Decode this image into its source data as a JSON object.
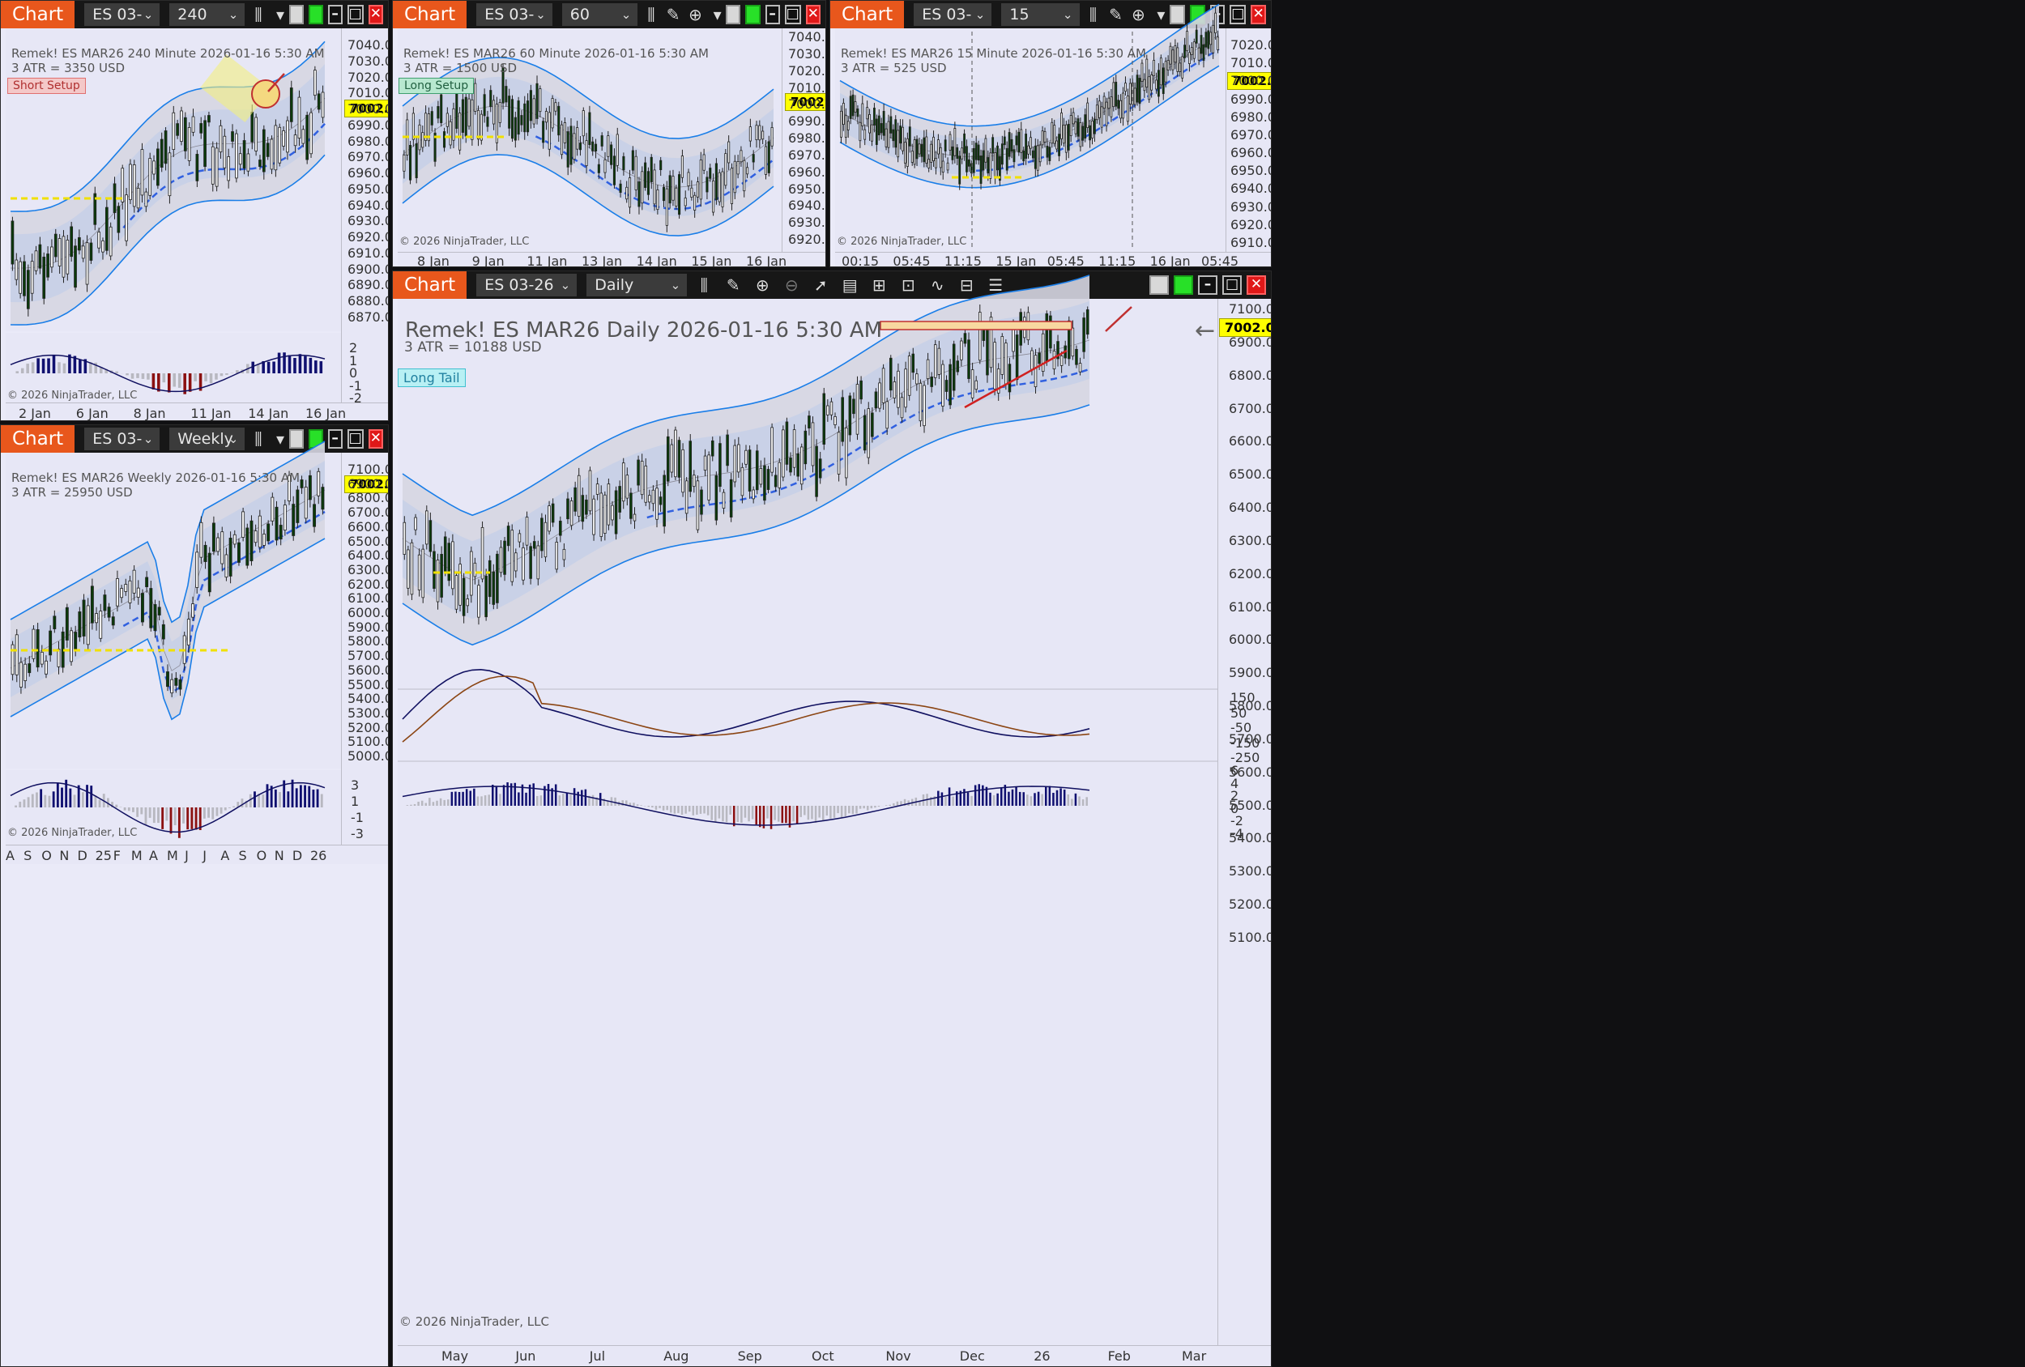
{
  "toolbar": {
    "chart_label": "Chart",
    "instrument": "ES 03-26"
  },
  "colors": {
    "tab_accent": "#e8571c",
    "price_marker": "#ffff00",
    "band_blue": "#1a7ee8",
    "bull_bar": "#0a3a0a",
    "bear_bar": "#8b1010"
  },
  "panes": {
    "p240": {
      "period": "240 Minute",
      "title": "Remek!  ES MAR26  240 Minute  2026-01-16 5:30 AM",
      "atr": "3 ATR = 3350 USD",
      "setup": "Short Setup",
      "price": "7002.00",
      "copyright": "© 2026 NinjaTrader, LLC",
      "y_ticks": [
        "7040.00",
        "7030.00",
        "7020.00",
        "7010.00",
        "7000.00",
        "6990.00",
        "6980.00",
        "6970.00",
        "6960.00",
        "6950.00",
        "6940.00",
        "6930.00",
        "6920.00",
        "6910.00",
        "6900.00",
        "6890.00",
        "6880.00",
        "6870.00"
      ],
      "osc_ticks": [
        "2",
        "1",
        "0",
        "-1",
        "-2"
      ],
      "x_ticks": [
        "2 Jan",
        "6 Jan",
        "8 Jan",
        "11 Jan",
        "14 Jan",
        "16 Jan"
      ]
    },
    "p60": {
      "period": "60 Minute",
      "title": "Remek!  ES MAR26  60 Minute  2026-01-16 5:30 AM",
      "atr": "3 ATR = 1500 USD",
      "setup": "Long Setup",
      "price": "7002.00",
      "copyright": "© 2026 NinjaTrader, LLC",
      "y_ticks": [
        "7040.00",
        "7030.00",
        "7020.00",
        "7010.00",
        "7000.00",
        "6990.00",
        "6980.00",
        "6970.00",
        "6960.00",
        "6950.00",
        "6940.00",
        "6930.00",
        "6920.00"
      ],
      "x_ticks": [
        "8 Jan",
        "9 Jan",
        "11 Jan",
        "13 Jan",
        "14 Jan",
        "15 Jan",
        "16 Jan"
      ]
    },
    "p15": {
      "period": "15 Minute",
      "title": "Remek!  ES MAR26  15 Minute  2026-01-16 5:30 AM",
      "atr": "3 ATR = 525 USD",
      "price": "7002.00",
      "copyright": "© 2026 NinjaTrader, LLC",
      "y_ticks": [
        "7020.00",
        "7010.00",
        "7000.00",
        "6990.00",
        "6980.00",
        "6970.00",
        "6960.00",
        "6950.00",
        "6940.00",
        "6930.00",
        "6920.00",
        "6910.00"
      ],
      "x_ticks": [
        "00:15",
        "05:45",
        "11:15",
        "15 Jan",
        "05:45",
        "11:15",
        "16 Jan",
        "05:45"
      ]
    },
    "pW": {
      "period": "Weekly",
      "title": "Remek!  ES MAR26  Weekly  2026-01-16 5:30 AM",
      "atr": "3 ATR = 25950 USD",
      "price": "7002.00",
      "copyright": "© 2026 NinjaTrader, LLC",
      "y_ticks": [
        "7100.00",
        "6900.00",
        "6800.00",
        "6700.00",
        "6600.00",
        "6500.00",
        "6400.00",
        "6300.00",
        "6200.00",
        "6100.00",
        "6000.00",
        "5900.00",
        "5800.00",
        "5700.00",
        "5600.00",
        "5500.00",
        "5400.00",
        "5300.00",
        "5200.00",
        "5100.00",
        "5000.00"
      ],
      "osc_ticks": [
        "3",
        "1",
        "-1",
        "-3"
      ],
      "x_ticks": [
        "A",
        "S",
        "O",
        "N",
        "D",
        "25",
        "F",
        "M",
        "A",
        "M",
        "J",
        "J",
        "A",
        "S",
        "O",
        "N",
        "D",
        "26"
      ]
    },
    "pD": {
      "period": "Daily",
      "title": "Remek!  ES MAR26  Daily  2026-01-16 5:30 AM",
      "atr": "3 ATR = 10188 USD",
      "setup": "Long Tail",
      "price": "7002.00",
      "copyright": "© 2026 NinjaTrader, LLC",
      "y_ticks": [
        "7100.00",
        "6900.00",
        "6800.00",
        "6700.00",
        "6600.00",
        "6500.00",
        "6400.00",
        "6300.00",
        "6200.00",
        "6100.00",
        "6000.00",
        "5900.00",
        "5800.00",
        "5700.00",
        "5600.00",
        "5500.00",
        "5400.00",
        "5300.00",
        "5200.00",
        "5100.00"
      ],
      "osc1_ticks": [
        "150",
        "50",
        "-50",
        "-150",
        "-250"
      ],
      "osc2_ticks": [
        "6",
        "4",
        "2",
        "0",
        "-2",
        "-4"
      ],
      "x_ticks": [
        "May",
        "Jun",
        "Jul",
        "Aug",
        "Sep",
        "Oct",
        "Nov",
        "Dec",
        "26",
        "Feb",
        "Mar"
      ]
    }
  }
}
